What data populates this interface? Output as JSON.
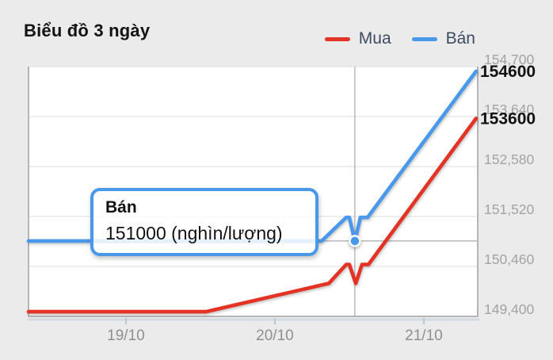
{
  "title": "Biểu đồ 3 ngày",
  "legend": {
    "items": [
      {
        "label": "Mua",
        "color": "#e23325"
      },
      {
        "label": "Bán",
        "color": "#4a98ea"
      }
    ]
  },
  "tooltip": {
    "series_label": "Bán",
    "value_text": "151000 (nghìn/lượng)"
  },
  "colors": {
    "background": "#ebebeb",
    "plot_background": "#ffffff",
    "grid": "#e4e4e4",
    "plot_border": "#b5b5b5",
    "border_shadow": "#ccd8e1",
    "crosshair": "#a8a8a8",
    "y_label": "#a3a3a3",
    "x_label": "#8f8f8f",
    "tick_mark": "#b7c8d6",
    "value_label": "#121212",
    "mua": "#e23325",
    "ban": "#4a98ea"
  },
  "chart_data": {
    "type": "line",
    "title": "Biểu đồ 3 ngày",
    "unit": "nghìn/lượng",
    "x_unit": "days relative to 19/10 tick",
    "xlim": [
      -0.654,
      2.362
    ],
    "ylim": [
      149400,
      154700
    ],
    "y_tick_interval": 1060,
    "grid": true,
    "legend_position": "top-right",
    "x_ticks": [
      {
        "pos": 0,
        "label": "19/10"
      },
      {
        "pos": 1,
        "label": "20/10"
      },
      {
        "pos": 2,
        "label": "21/10"
      }
    ],
    "y_ticks": [
      {
        "value": 154700,
        "label": "154,700"
      },
      {
        "value": 153640,
        "label": "153,640"
      },
      {
        "value": 152580,
        "label": "152,580"
      },
      {
        "value": 151520,
        "label": "151,520"
      },
      {
        "value": 150460,
        "label": "150,460"
      },
      {
        "value": 149400,
        "label": "149,400"
      }
    ],
    "series": [
      {
        "name": "Mua",
        "color": "#e23325",
        "end_value": 153600,
        "end_label": "153600",
        "points": [
          [
            -0.654,
            149500
          ],
          [
            0.537,
            149500
          ],
          [
            1.362,
            150100
          ],
          [
            1.479,
            150500
          ],
          [
            1.5,
            150500
          ],
          [
            1.543,
            150100
          ],
          [
            1.585,
            150500
          ],
          [
            1.628,
            150500
          ],
          [
            2.351,
            153600
          ]
        ]
      },
      {
        "name": "Bán",
        "color": "#4a98ea",
        "end_value": 154600,
        "end_label": "154600",
        "points": [
          [
            -0.654,
            151000
          ],
          [
            1.314,
            151000
          ],
          [
            1.479,
            151500
          ],
          [
            1.5,
            151500
          ],
          [
            1.537,
            151000
          ],
          [
            1.574,
            151500
          ],
          [
            1.622,
            151500
          ],
          [
            2.351,
            154600
          ]
        ]
      }
    ],
    "hover_marker": {
      "series": "Bán",
      "x": 1.537,
      "value": 151000
    }
  }
}
